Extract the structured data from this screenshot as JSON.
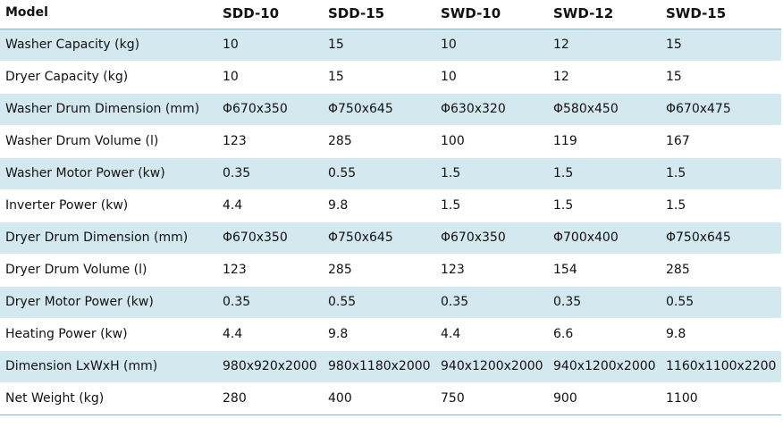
{
  "table": {
    "headers": [
      "Model",
      "SDD-10",
      "SDD-15",
      "SWD-10",
      "SWD-12",
      "SWD-15"
    ],
    "rows": [
      [
        "Washer Capacity (kg)",
        "10",
        "15",
        "10",
        "12",
        "15"
      ],
      [
        "Dryer Capacity (kg)",
        "10",
        "15",
        "10",
        "12",
        "15"
      ],
      [
        "Washer Drum Dimension (mm)",
        "Φ670x350",
        "Φ750x645",
        "Φ630x320",
        "Φ580x450",
        "Φ670x475"
      ],
      [
        "Washer Drum Volume (l)",
        "123",
        "285",
        "100",
        "119",
        "167"
      ],
      [
        "Washer Motor Power (kw)",
        "0.35",
        "0.55",
        "1.5",
        "1.5",
        "1.5"
      ],
      [
        "Inverter Power (kw)",
        "4.4",
        "9.8",
        "1.5",
        "1.5",
        "1.5"
      ],
      [
        "Dryer Drum Dimension (mm)",
        "Φ670x350",
        "Φ750x645",
        "Φ670x350",
        "Φ700x400",
        "Φ750x645"
      ],
      [
        "Dryer Drum Volume (l)",
        "123",
        "285",
        "123",
        "154",
        "285"
      ],
      [
        "Dryer Motor Power (kw)",
        "0.35",
        "0.55",
        "0.35",
        "0.35",
        "0.55"
      ],
      [
        "Heating Power (kw)",
        "4.4",
        "9.8",
        "4.4",
        "6.6",
        "9.8"
      ],
      [
        "Dimension  LxWxH (mm)",
        "980x920x2000",
        "980x1180x2000",
        "940x1200x2000",
        "940x1200x2000",
        "1160x1100x2200"
      ],
      [
        "Net Weight (kg)",
        "280",
        "400",
        "750",
        "900",
        "1100"
      ]
    ]
  }
}
